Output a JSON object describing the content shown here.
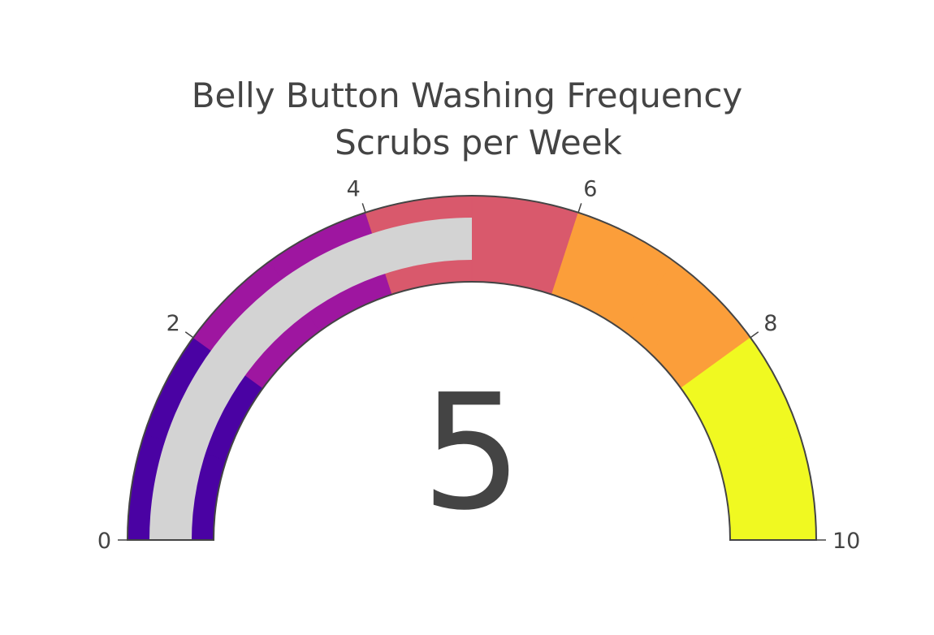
{
  "chart_data": {
    "type": "gauge",
    "title": "Belly Button Washing Frequency",
    "subtitle": "Scrubs per Week",
    "value": 5,
    "value_display": "5",
    "range": [
      0,
      10
    ],
    "tick_values": [
      0,
      2,
      4,
      6,
      8,
      10
    ],
    "tick_labels": [
      "0",
      "2",
      "4",
      "6",
      "8",
      "10"
    ],
    "steps": [
      {
        "range": [
          0,
          1
        ],
        "color": "#4a02a3"
      },
      {
        "range": [
          1,
          2
        ],
        "color": "#4a02a3"
      },
      {
        "range": [
          2,
          3
        ],
        "color": "#9e16a0"
      },
      {
        "range": [
          3,
          4
        ],
        "color": "#9e16a0"
      },
      {
        "range": [
          4,
          5
        ],
        "color": "#d9596c"
      },
      {
        "range": [
          5,
          6
        ],
        "color": "#d9596c"
      },
      {
        "range": [
          6,
          7
        ],
        "color": "#fb9e3a"
      },
      {
        "range": [
          7,
          8
        ],
        "color": "#fb9e3a"
      },
      {
        "range": [
          8,
          9
        ],
        "color": "#f0f921"
      },
      {
        "range": [
          9,
          10
        ],
        "color": "#f0f921"
      }
    ],
    "bar_color": "#d3d3d3",
    "border_color": "#444444"
  }
}
